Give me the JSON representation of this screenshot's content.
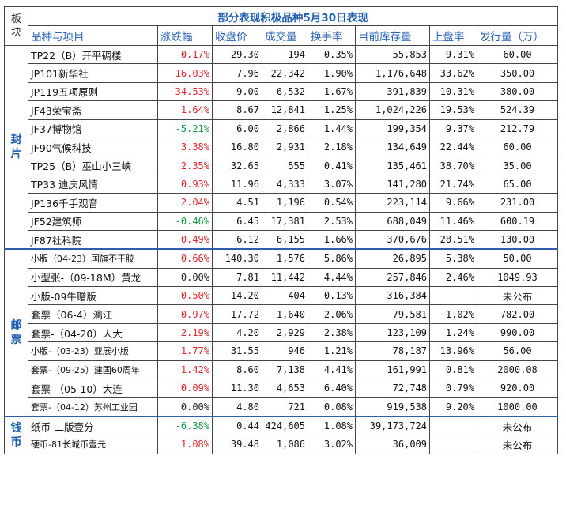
{
  "title": "部分表现积极品种5月30日表现",
  "section_header": "板块",
  "headers": [
    "品种与项目",
    "涨跌幅",
    "收盘价",
    "成交量",
    "换手率",
    "目前库存量",
    "上盘率",
    "发行量（万）"
  ],
  "sections": [
    {
      "name": "封片",
      "rows": [
        {
          "name": "TP22（B）开平碉楼",
          "change": "0.17%",
          "dir": "pos",
          "close": "29.30",
          "volume": "194",
          "turnover": "0.35%",
          "stock": "55,853",
          "rate": "9.31%",
          "issue": "60.00"
        },
        {
          "name": "JP101新华社",
          "change": "16.03%",
          "dir": "pos",
          "close": "7.96",
          "volume": "22,342",
          "turnover": "1.90%",
          "stock": "1,176,648",
          "rate": "33.62%",
          "issue": "350.00"
        },
        {
          "name": "JP119五项原则",
          "change": "34.53%",
          "dir": "pos",
          "close": "9.00",
          "volume": "6,532",
          "turnover": "1.67%",
          "stock": "391,839",
          "rate": "10.31%",
          "issue": "380.00"
        },
        {
          "name": "JF43荣宝斋",
          "change": "1.64%",
          "dir": "pos",
          "close": "8.67",
          "volume": "12,841",
          "turnover": "1.25%",
          "stock": "1,024,226",
          "rate": "19.53%",
          "issue": "524.39"
        },
        {
          "name": "JF37博物馆",
          "change": "-5.21%",
          "dir": "neg",
          "close": "6.00",
          "volume": "2,866",
          "turnover": "1.44%",
          "stock": "199,354",
          "rate": "9.37%",
          "issue": "212.79"
        },
        {
          "name": "JF90气候科技",
          "change": "3.38%",
          "dir": "pos",
          "close": "16.80",
          "volume": "2,931",
          "turnover": "2.18%",
          "stock": "134,649",
          "rate": "22.44%",
          "issue": "60.00"
        },
        {
          "name": "TP25（B）巫山小三峡",
          "change": "2.35%",
          "dir": "pos",
          "close": "32.65",
          "volume": "555",
          "turnover": "0.41%",
          "stock": "135,461",
          "rate": "38.70%",
          "issue": "35.00"
        },
        {
          "name": "TP33 迪庆风情",
          "change": "0.93%",
          "dir": "pos",
          "close": "11.96",
          "volume": "4,333",
          "turnover": "3.07%",
          "stock": "141,280",
          "rate": "21.74%",
          "issue": "65.00"
        },
        {
          "name": "JP136千手观音",
          "change": "2.04%",
          "dir": "pos",
          "close": "4.51",
          "volume": "1,196",
          "turnover": "0.54%",
          "stock": "223,114",
          "rate": "9.66%",
          "issue": "231.00"
        },
        {
          "name": "JF52建筑师",
          "change": "-0.46%",
          "dir": "neg",
          "close": "6.45",
          "volume": "17,381",
          "turnover": "2.53%",
          "stock": "688,049",
          "rate": "11.46%",
          "issue": "600.19"
        },
        {
          "name": "JF87社科院",
          "change": "0.49%",
          "dir": "pos",
          "close": "6.12",
          "volume": "6,155",
          "turnover": "1.66%",
          "stock": "370,676",
          "rate": "28.51%",
          "issue": "130.00"
        }
      ]
    },
    {
      "name": "邮票",
      "rows": [
        {
          "name": "小版（04-23）国旗不干胶",
          "small": true,
          "change": "0.66%",
          "dir": "pos",
          "close": "140.30",
          "volume": "1,576",
          "turnover": "5.86%",
          "stock": "26,895",
          "rate": "5.38%",
          "issue": "50.00"
        },
        {
          "name": "小型张-（09-18M）黄龙",
          "change": "0.00%",
          "dir": "zero",
          "close": "7.81",
          "volume": "11,442",
          "turnover": "4.44%",
          "stock": "257,846",
          "rate": "2.46%",
          "issue": "1049.93"
        },
        {
          "name": "小版-09牛赠版",
          "change": "0.50%",
          "dir": "pos",
          "close": "14.20",
          "volume": "404",
          "turnover": "0.13%",
          "stock": "316,384",
          "rate": "",
          "issue": "未公布",
          "issue_text": true
        },
        {
          "name": "套票（06-4）漓江",
          "change": "0.97%",
          "dir": "pos",
          "close": "17.72",
          "volume": "1,640",
          "turnover": "2.06%",
          "stock": "79,581",
          "rate": "1.02%",
          "issue": "782.00"
        },
        {
          "name": "套票-（04-20）人大",
          "change": "2.19%",
          "dir": "pos",
          "close": "4.20",
          "volume": "2,929",
          "turnover": "2.38%",
          "stock": "123,109",
          "rate": "1.24%",
          "issue": "990.00"
        },
        {
          "name": "小版-（03-23）亚展小版",
          "small": true,
          "change": "1.77%",
          "dir": "pos",
          "close": "31.55",
          "volume": "946",
          "turnover": "1.21%",
          "stock": "78,187",
          "rate": "13.96%",
          "issue": "56.00"
        },
        {
          "name": "套票-（09-25）建国60周年",
          "small": true,
          "change": "1.42%",
          "dir": "pos",
          "close": "8.60",
          "volume": "7,138",
          "turnover": "4.41%",
          "stock": "161,991",
          "rate": "0.81%",
          "issue": "2000.08"
        },
        {
          "name": "套票-（05-10）大连",
          "change": "0.09%",
          "dir": "pos",
          "close": "11.30",
          "volume": "4,653",
          "turnover": "6.40%",
          "stock": "72,748",
          "rate": "0.79%",
          "issue": "920.00"
        },
        {
          "name": "套票-（04-12）苏州工业园",
          "small": true,
          "change": "0.00%",
          "dir": "zero",
          "close": "4.80",
          "volume": "721",
          "turnover": "0.08%",
          "stock": "919,538",
          "rate": "9.20%",
          "issue": "1000.00"
        }
      ]
    },
    {
      "name": "钱币",
      "rows": [
        {
          "name": "纸币-二版壹分",
          "change": "-6.38%",
          "dir": "neg",
          "close": "0.44",
          "volume": "424,605",
          "turnover": "1.08%",
          "stock": "39,173,724",
          "rate": "",
          "issue": "未公布",
          "issue_text": true
        },
        {
          "name": "硬币-81长城币壹元",
          "small": true,
          "change": "1.08%",
          "dir": "pos",
          "close": "39.48",
          "volume": "1,086",
          "turnover": "3.02%",
          "stock": "36,009",
          "rate": "",
          "issue": "未公布",
          "issue_text": true
        }
      ]
    }
  ]
}
